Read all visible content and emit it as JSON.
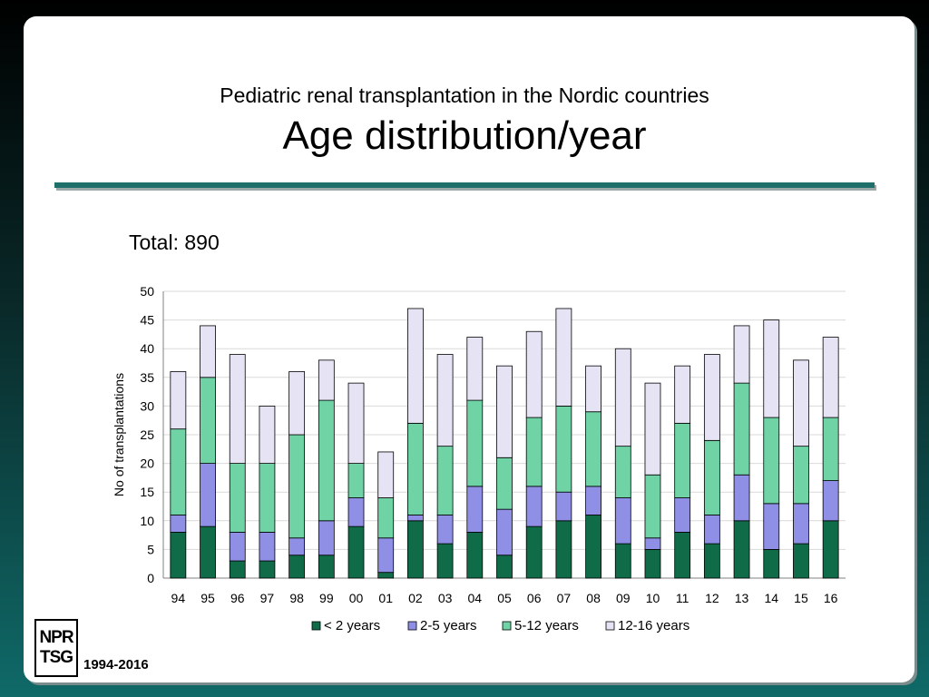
{
  "slide": {
    "subtitle": "Pediatric renal transplantation in the Nordic countries",
    "title": "Age distribution/year",
    "total_label": "Total: 890",
    "logo_line1": "NPR",
    "logo_line2": "TSG",
    "years_label": "1994-2016"
  },
  "chart_data": {
    "type": "bar",
    "stacked": true,
    "ylabel": "No of transplantations",
    "xlabel": "",
    "ylim": [
      0,
      50
    ],
    "yticks": [
      0,
      5,
      10,
      15,
      20,
      25,
      30,
      35,
      40,
      45,
      50
    ],
    "grid": true,
    "legend_position": "bottom",
    "categories": [
      "94",
      "95",
      "96",
      "97",
      "98",
      "99",
      "00",
      "01",
      "02",
      "03",
      "04",
      "05",
      "06",
      "07",
      "08",
      "09",
      "10",
      "11",
      "12",
      "13",
      "14",
      "15",
      "16"
    ],
    "series": [
      {
        "name": "< 2 years",
        "color": "#0f6b48",
        "values": [
          8,
          9,
          3,
          3,
          4,
          4,
          9,
          1,
          10,
          6,
          8,
          4,
          9,
          10,
          11,
          6,
          5,
          8,
          6,
          10,
          5,
          6,
          10
        ]
      },
      {
        "name": "2-5 years",
        "color": "#8f8fe6",
        "values": [
          3,
          11,
          5,
          5,
          3,
          6,
          5,
          6,
          1,
          5,
          8,
          8,
          7,
          5,
          5,
          8,
          2,
          6,
          5,
          8,
          8,
          7,
          7
        ]
      },
      {
        "name": "5-12 years",
        "color": "#6fd3a6",
        "values": [
          15,
          15,
          12,
          12,
          18,
          21,
          6,
          7,
          16,
          12,
          15,
          9,
          12,
          15,
          13,
          9,
          11,
          13,
          13,
          16,
          15,
          10,
          11
        ]
      },
      {
        "name": "12-16 years",
        "color": "#e6e3f5",
        "values": [
          10,
          9,
          19,
          10,
          11,
          7,
          14,
          8,
          20,
          16,
          11,
          16,
          15,
          17,
          8,
          17,
          16,
          10,
          15,
          10,
          17,
          15,
          14
        ]
      }
    ]
  }
}
